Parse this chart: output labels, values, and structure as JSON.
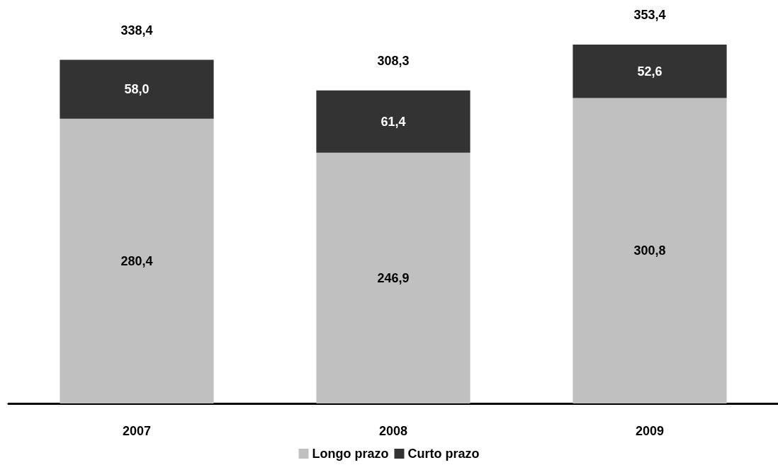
{
  "chart_data": {
    "type": "bar",
    "stacked": true,
    "legend": "bottom",
    "categories": [
      "2007",
      "2008",
      "2009"
    ],
    "series": [
      {
        "name": "Longo prazo",
        "color": "#c0c0c0",
        "values": [
          280.4,
          246.9,
          300.8
        ],
        "value_labels": [
          "280,4",
          "246,9",
          "300,8"
        ]
      },
      {
        "name": "Curto prazo",
        "color": "#333333",
        "values": [
          58.0,
          61.4,
          52.6
        ],
        "value_labels": [
          "58,0",
          "61,4",
          "52,6"
        ]
      }
    ],
    "totals": [
      "338,4",
      "308,3",
      "353,4"
    ]
  }
}
